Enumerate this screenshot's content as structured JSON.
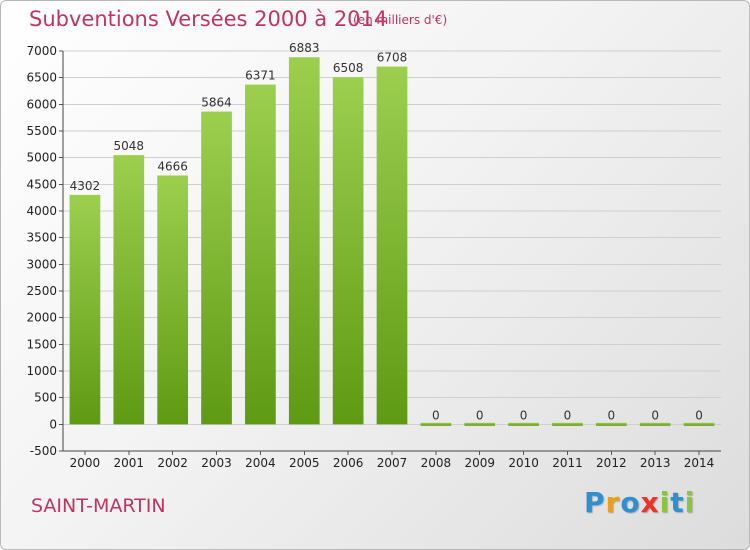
{
  "header": {
    "title": "Subventions Versées 2000 à 2014",
    "unit": "(en milliers d'€)"
  },
  "footer": {
    "place": "SAINT-MARTIN",
    "logo_letters": [
      {
        "ch": "P",
        "color": "#2f8fd0"
      },
      {
        "ch": "r",
        "color": "#e5a11a"
      },
      {
        "ch": "o",
        "color": "#2f8fd0"
      },
      {
        "ch": "x",
        "color": "#e8342b"
      },
      {
        "ch": "i",
        "color": "#8bc53f"
      },
      {
        "ch": "t",
        "color": "#2f8fd0"
      },
      {
        "ch": "i",
        "color": "#8bc53f"
      }
    ]
  },
  "colors": {
    "accent": "#c03560",
    "bar_top": "#9ccf4e",
    "bar_bottom": "#5f9a14",
    "grid": "#cfcfcf"
  },
  "chart_data": {
    "type": "bar",
    "categories": [
      "2000",
      "2001",
      "2002",
      "2003",
      "2004",
      "2005",
      "2006",
      "2007",
      "2008",
      "2009",
      "2010",
      "2011",
      "2012",
      "2013",
      "2014"
    ],
    "values": [
      4302,
      5048,
      4666,
      5864,
      6371,
      6883,
      6508,
      6708,
      0,
      0,
      0,
      0,
      0,
      0,
      0
    ],
    "ylim": [
      -500,
      7000
    ],
    "yticks": [
      -500,
      0,
      500,
      1000,
      1500,
      2000,
      2500,
      3000,
      3500,
      4000,
      4500,
      5000,
      5500,
      6000,
      6500,
      7000
    ],
    "grid": true
  }
}
